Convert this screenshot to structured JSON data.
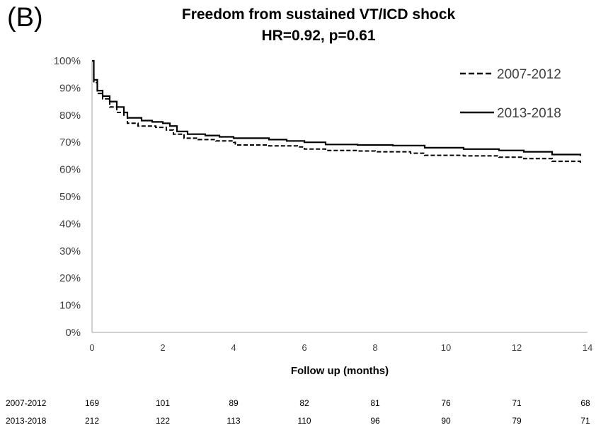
{
  "panel_label": "(B)",
  "chart_data": {
    "type": "line",
    "title": "Freedom from sustained VT/ICD shock",
    "subtitle": "HR=0.92, p=0.61",
    "xlabel": "Follow up (months)",
    "ylabel": "",
    "xlim": [
      0,
      14
    ],
    "ylim": [
      0,
      100
    ],
    "x_ticks": [
      "0",
      "2",
      "4",
      "6",
      "8",
      "10",
      "12",
      "14"
    ],
    "y_ticks": [
      "0%",
      "10%",
      "20%",
      "30%",
      "40%",
      "50%",
      "60%",
      "70%",
      "80%",
      "90%",
      "100%"
    ],
    "legend_position": "top-right",
    "series": [
      {
        "name": "2007-2012",
        "style": "dashed",
        "color": "#000000",
        "points": [
          [
            0,
            100
          ],
          [
            0.05,
            92
          ],
          [
            0.15,
            88
          ],
          [
            0.3,
            86
          ],
          [
            0.5,
            83
          ],
          [
            0.7,
            81
          ],
          [
            0.9,
            80
          ],
          [
            1.0,
            77
          ],
          [
            1.3,
            76
          ],
          [
            1.8,
            75.5
          ],
          [
            2.1,
            74.5
          ],
          [
            2.3,
            73
          ],
          [
            2.6,
            71.5
          ],
          [
            3.0,
            71
          ],
          [
            3.5,
            70.5
          ],
          [
            4.0,
            70
          ],
          [
            4.05,
            69
          ],
          [
            5.0,
            68.7
          ],
          [
            5.8,
            68.3
          ],
          [
            6.0,
            67.5
          ],
          [
            6.6,
            67
          ],
          [
            7.5,
            66.8
          ],
          [
            8.0,
            66.5
          ],
          [
            9.0,
            66
          ],
          [
            9.4,
            65.2
          ],
          [
            10.5,
            65
          ],
          [
            11.5,
            64.5
          ],
          [
            12.2,
            64
          ],
          [
            13.0,
            63
          ],
          [
            13.8,
            62.5
          ]
        ]
      },
      {
        "name": "2013-2018",
        "style": "solid",
        "color": "#000000",
        "points": [
          [
            0,
            100
          ],
          [
            0.05,
            93
          ],
          [
            0.15,
            89
          ],
          [
            0.3,
            87
          ],
          [
            0.5,
            85
          ],
          [
            0.7,
            83
          ],
          [
            0.9,
            81
          ],
          [
            1.0,
            79
          ],
          [
            1.4,
            78
          ],
          [
            1.7,
            77.5
          ],
          [
            2.0,
            77
          ],
          [
            2.2,
            76
          ],
          [
            2.4,
            74
          ],
          [
            2.7,
            73
          ],
          [
            3.2,
            72.5
          ],
          [
            3.6,
            72
          ],
          [
            4.0,
            71.5
          ],
          [
            5.0,
            71
          ],
          [
            5.5,
            70.5
          ],
          [
            6.0,
            70
          ],
          [
            6.6,
            69.2
          ],
          [
            7.5,
            69
          ],
          [
            8.5,
            68.8
          ],
          [
            9.4,
            68
          ],
          [
            10.5,
            67.5
          ],
          [
            11.5,
            67
          ],
          [
            12.2,
            66.5
          ],
          [
            13.0,
            65.5
          ],
          [
            13.8,
            65
          ]
        ]
      }
    ]
  },
  "risk_table": {
    "rows": [
      {
        "label": "2007-2012",
        "values": [
          "169",
          "101",
          "89",
          "82",
          "81",
          "76",
          "71",
          "68"
        ]
      },
      {
        "label": "2013-2018",
        "values": [
          "212",
          "122",
          "113",
          "110",
          "96",
          "90",
          "79",
          "71"
        ]
      }
    ]
  }
}
